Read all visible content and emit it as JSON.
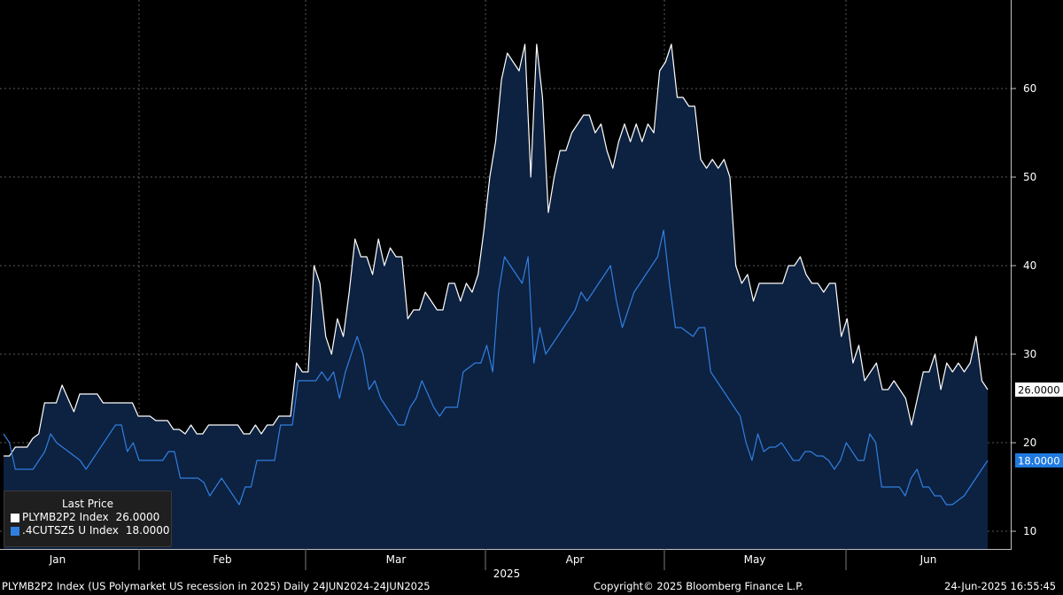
{
  "chart_data": {
    "type": "area",
    "ylim": [
      8,
      70
    ],
    "yticks": [
      10,
      20,
      30,
      40,
      50,
      60
    ],
    "xlabel": "2025",
    "xticks": [
      "Jan",
      "Feb",
      "Mar",
      "Apr",
      "May",
      "Jun"
    ],
    "grid": true,
    "legend_placement": "bottom-left",
    "series": [
      {
        "name": "PLYMB2P2 Index",
        "color": "#ffffff",
        "last_label": "26.0000",
        "values": [
          18.5,
          18.5,
          19.5,
          19.5,
          19.5,
          20.5,
          21,
          24.5,
          24.5,
          24.5,
          26.5,
          25,
          23.5,
          25.5,
          25.5,
          25.5,
          25.5,
          24.5,
          24.5,
          24.5,
          24.5,
          24.5,
          24.5,
          23,
          23,
          23,
          22.5,
          22.5,
          22.5,
          21.5,
          21.5,
          21,
          22,
          21,
          21,
          22,
          22,
          22,
          22,
          22,
          22,
          21,
          21,
          22,
          21,
          22,
          22,
          23,
          23,
          23,
          29,
          28,
          28,
          40,
          38,
          32,
          30,
          34,
          32,
          37,
          43,
          41,
          41,
          39,
          43,
          40,
          42,
          41,
          41,
          34,
          35,
          35,
          37,
          36,
          35,
          35,
          38,
          38,
          36,
          38,
          37,
          39,
          44,
          50,
          54,
          61,
          64,
          63,
          62,
          65,
          50,
          65,
          59,
          46,
          50,
          53,
          53,
          55,
          56,
          57,
          57,
          55,
          56,
          53,
          51,
          54,
          56,
          54,
          56,
          54,
          56,
          55,
          62,
          63,
          65,
          59,
          59,
          58,
          58,
          52,
          51,
          52,
          51,
          52,
          50,
          40,
          38,
          39,
          36,
          38,
          38,
          38,
          38,
          38,
          40,
          40,
          41,
          39,
          38,
          38,
          37,
          38,
          38,
          32,
          34,
          29,
          31,
          27,
          28,
          29,
          26,
          26,
          27,
          26,
          25,
          22,
          25,
          28,
          28,
          30,
          26,
          29,
          28,
          29,
          28,
          29,
          32,
          27,
          26
        ]
      },
      {
        "name": ".4CUTSZ5 U Index",
        "color": "#2f7fe0",
        "last_label": "18.0000",
        "values": [
          21,
          20,
          17,
          17,
          17,
          17,
          18,
          19,
          21,
          20,
          19.5,
          19,
          18.5,
          18,
          17,
          18,
          19,
          20,
          21,
          22,
          22,
          19,
          20,
          18,
          18,
          18,
          18,
          18,
          19,
          19,
          16,
          16,
          16,
          16,
          15.5,
          14,
          15,
          16,
          15,
          14,
          13,
          15,
          15,
          18,
          18,
          18,
          18,
          22,
          22,
          22,
          27,
          27,
          27,
          27,
          28,
          27,
          28,
          25,
          28,
          30,
          32,
          30,
          26,
          27,
          25,
          24,
          23,
          22,
          22,
          24,
          25,
          27,
          25.5,
          24,
          23,
          24,
          24,
          24,
          28,
          28.5,
          29,
          29,
          31,
          28,
          37,
          41,
          40,
          39,
          38,
          41,
          29,
          33,
          30,
          31,
          32,
          33,
          34,
          35,
          37,
          36,
          37,
          38,
          39,
          40,
          36,
          33,
          35,
          37,
          38,
          39,
          40,
          41,
          44,
          38,
          33,
          33,
          32.5,
          32,
          33,
          33,
          28,
          27,
          26,
          25,
          24,
          23,
          20,
          18,
          21,
          19,
          19.5,
          19.5,
          20,
          19,
          18,
          18,
          19,
          19,
          18.5,
          18.5,
          18,
          17,
          18,
          20,
          19,
          18,
          18,
          21,
          20,
          15,
          15,
          15,
          15,
          14,
          16,
          17,
          15,
          15,
          14,
          14,
          13,
          13,
          13.5,
          14,
          15,
          16,
          17,
          18
        ]
      }
    ]
  },
  "legend": {
    "title": "Last Price",
    "items": [
      {
        "name": "PLYMB2P2 Index",
        "value": "26.0000"
      },
      {
        "name": ".4CUTSZ5 U Index",
        "value": "18.0000"
      }
    ]
  },
  "footer": {
    "left": "PLYMB2P2 Index (US Polymarket US recession in 2025)  Daily 24JUN2024-24JUN2025",
    "center": "Copyright© 2025 Bloomberg Finance L.P.",
    "right": "24-Jun-2025 16:55:45"
  }
}
